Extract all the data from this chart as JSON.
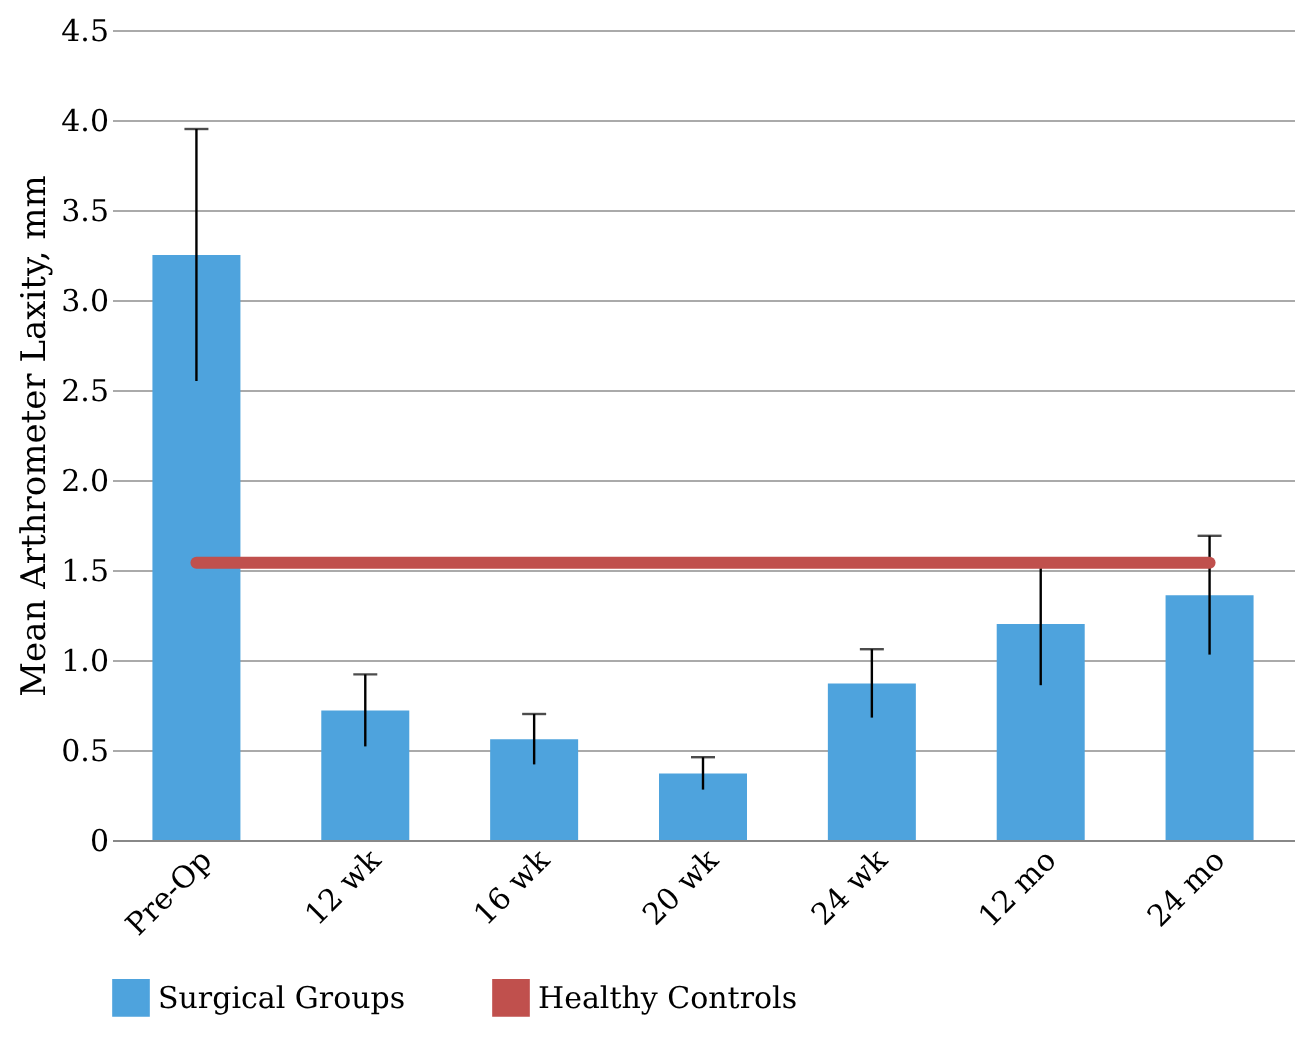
{
  "chart_data": {
    "type": "bar",
    "ylabel": "Mean Arthrometer Laxity, mm",
    "categories": [
      "Pre-Op",
      "12 wk",
      "16 wk",
      "20 wk",
      "24 wk",
      "12 mo",
      "24 mo"
    ],
    "series": [
      {
        "name": "Surgical Groups",
        "color": "#4ea3dd",
        "values": [
          3.25,
          0.72,
          0.56,
          0.37,
          0.87,
          1.2,
          1.36
        ],
        "errors": [
          0.7,
          0.2,
          0.14,
          0.09,
          0.19,
          0.34,
          0.33
        ]
      },
      {
        "name": "Healthy Controls",
        "type": "line",
        "color": "#c0504d",
        "values": [
          1.54,
          1.54,
          1.54,
          1.54,
          1.54,
          1.54,
          1.54
        ]
      }
    ],
    "ylim": [
      0,
      4.5
    ],
    "yticks": [
      0,
      0.5,
      {
        "value": 1,
        "label": "1.0"
      },
      1.5,
      {
        "value": 2,
        "label": "2.0"
      },
      2.5,
      {
        "value": 3,
        "label": "3.0"
      },
      3.5,
      {
        "value": 4,
        "label": "4.0"
      },
      4.5
    ],
    "grid": "y",
    "legend": "bottom"
  }
}
